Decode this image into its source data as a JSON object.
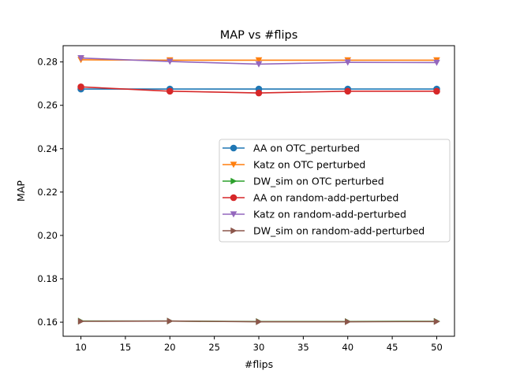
{
  "chart_data": {
    "type": "line",
    "title": "MAP vs #flips",
    "xlabel": "#flips",
    "ylabel": "MAP",
    "x": [
      10,
      20,
      30,
      40,
      50
    ],
    "xlim": [
      8,
      52
    ],
    "ylim": [
      0.1535,
      0.2875
    ],
    "xticks": [
      10,
      15,
      20,
      25,
      30,
      35,
      40,
      45,
      50
    ],
    "yticks": [
      0.16,
      0.18,
      0.2,
      0.22,
      0.24,
      0.26,
      0.28
    ],
    "xtick_labels": [
      "10",
      "15",
      "20",
      "25",
      "30",
      "35",
      "40",
      "45",
      "50"
    ],
    "ytick_labels": [
      "0.16",
      "0.18",
      "0.20",
      "0.22",
      "0.24",
      "0.26",
      "0.28"
    ],
    "grid": false,
    "legend_position": "center-right",
    "series": [
      {
        "name": "AA on OTC_perturbed",
        "color": "#1f77b4",
        "marker": "circle",
        "values": [
          0.2675,
          0.2675,
          0.2675,
          0.2675,
          0.2675
        ]
      },
      {
        "name": "Katz on OTC perturbed",
        "color": "#ff7f0e",
        "marker": "triangle-down",
        "values": [
          0.281,
          0.2808,
          0.2808,
          0.2808,
          0.2808
        ]
      },
      {
        "name": "DW_sim on OTC perturbed",
        "color": "#2ca02c",
        "marker": "triangle-right",
        "values": [
          0.1605,
          0.1605,
          0.1603,
          0.1603,
          0.1604
        ]
      },
      {
        "name": "AA on random-add-perturbed",
        "color": "#d62728",
        "marker": "circle",
        "values": [
          0.2685,
          0.2665,
          0.2657,
          0.2665,
          0.2665
        ]
      },
      {
        "name": "Katz on random-add-perturbed",
        "color": "#9467bd",
        "marker": "triangle-down",
        "values": [
          0.2818,
          0.2802,
          0.279,
          0.2798,
          0.2797
        ]
      },
      {
        "name": "DW_sim on random-add-perturbed",
        "color": "#8c564b",
        "marker": "triangle-right",
        "values": [
          0.1604,
          0.1605,
          0.1602,
          0.1602,
          0.1603
        ]
      }
    ]
  }
}
